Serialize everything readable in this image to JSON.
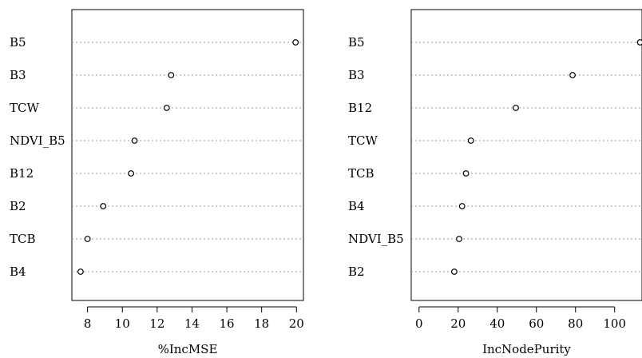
{
  "chart_data": [
    {
      "type": "scatter",
      "xlabel": "%IncMSE",
      "xlim": [
        7.1,
        20.4
      ],
      "xticks": [
        8,
        10,
        12,
        14,
        16,
        18,
        20
      ],
      "categories": [
        "B5",
        "B3",
        "TCW",
        "NDVI_B5",
        "B12",
        "B2",
        "TCB",
        "B4"
      ],
      "values": [
        19.95,
        12.8,
        12.55,
        10.7,
        10.5,
        8.9,
        8.0,
        7.6
      ]
    },
    {
      "type": "scatter",
      "xlabel": "IncNodePurity",
      "xlim": [
        -4,
        114
      ],
      "xticks": [
        0,
        20,
        40,
        60,
        80,
        100
      ],
      "categories": [
        "B5",
        "B3",
        "B12",
        "TCW",
        "TCB",
        "B4",
        "NDVI_B5",
        "B2"
      ],
      "values": [
        113,
        78.5,
        49.5,
        26.5,
        24,
        22,
        20.5,
        18
      ]
    }
  ]
}
